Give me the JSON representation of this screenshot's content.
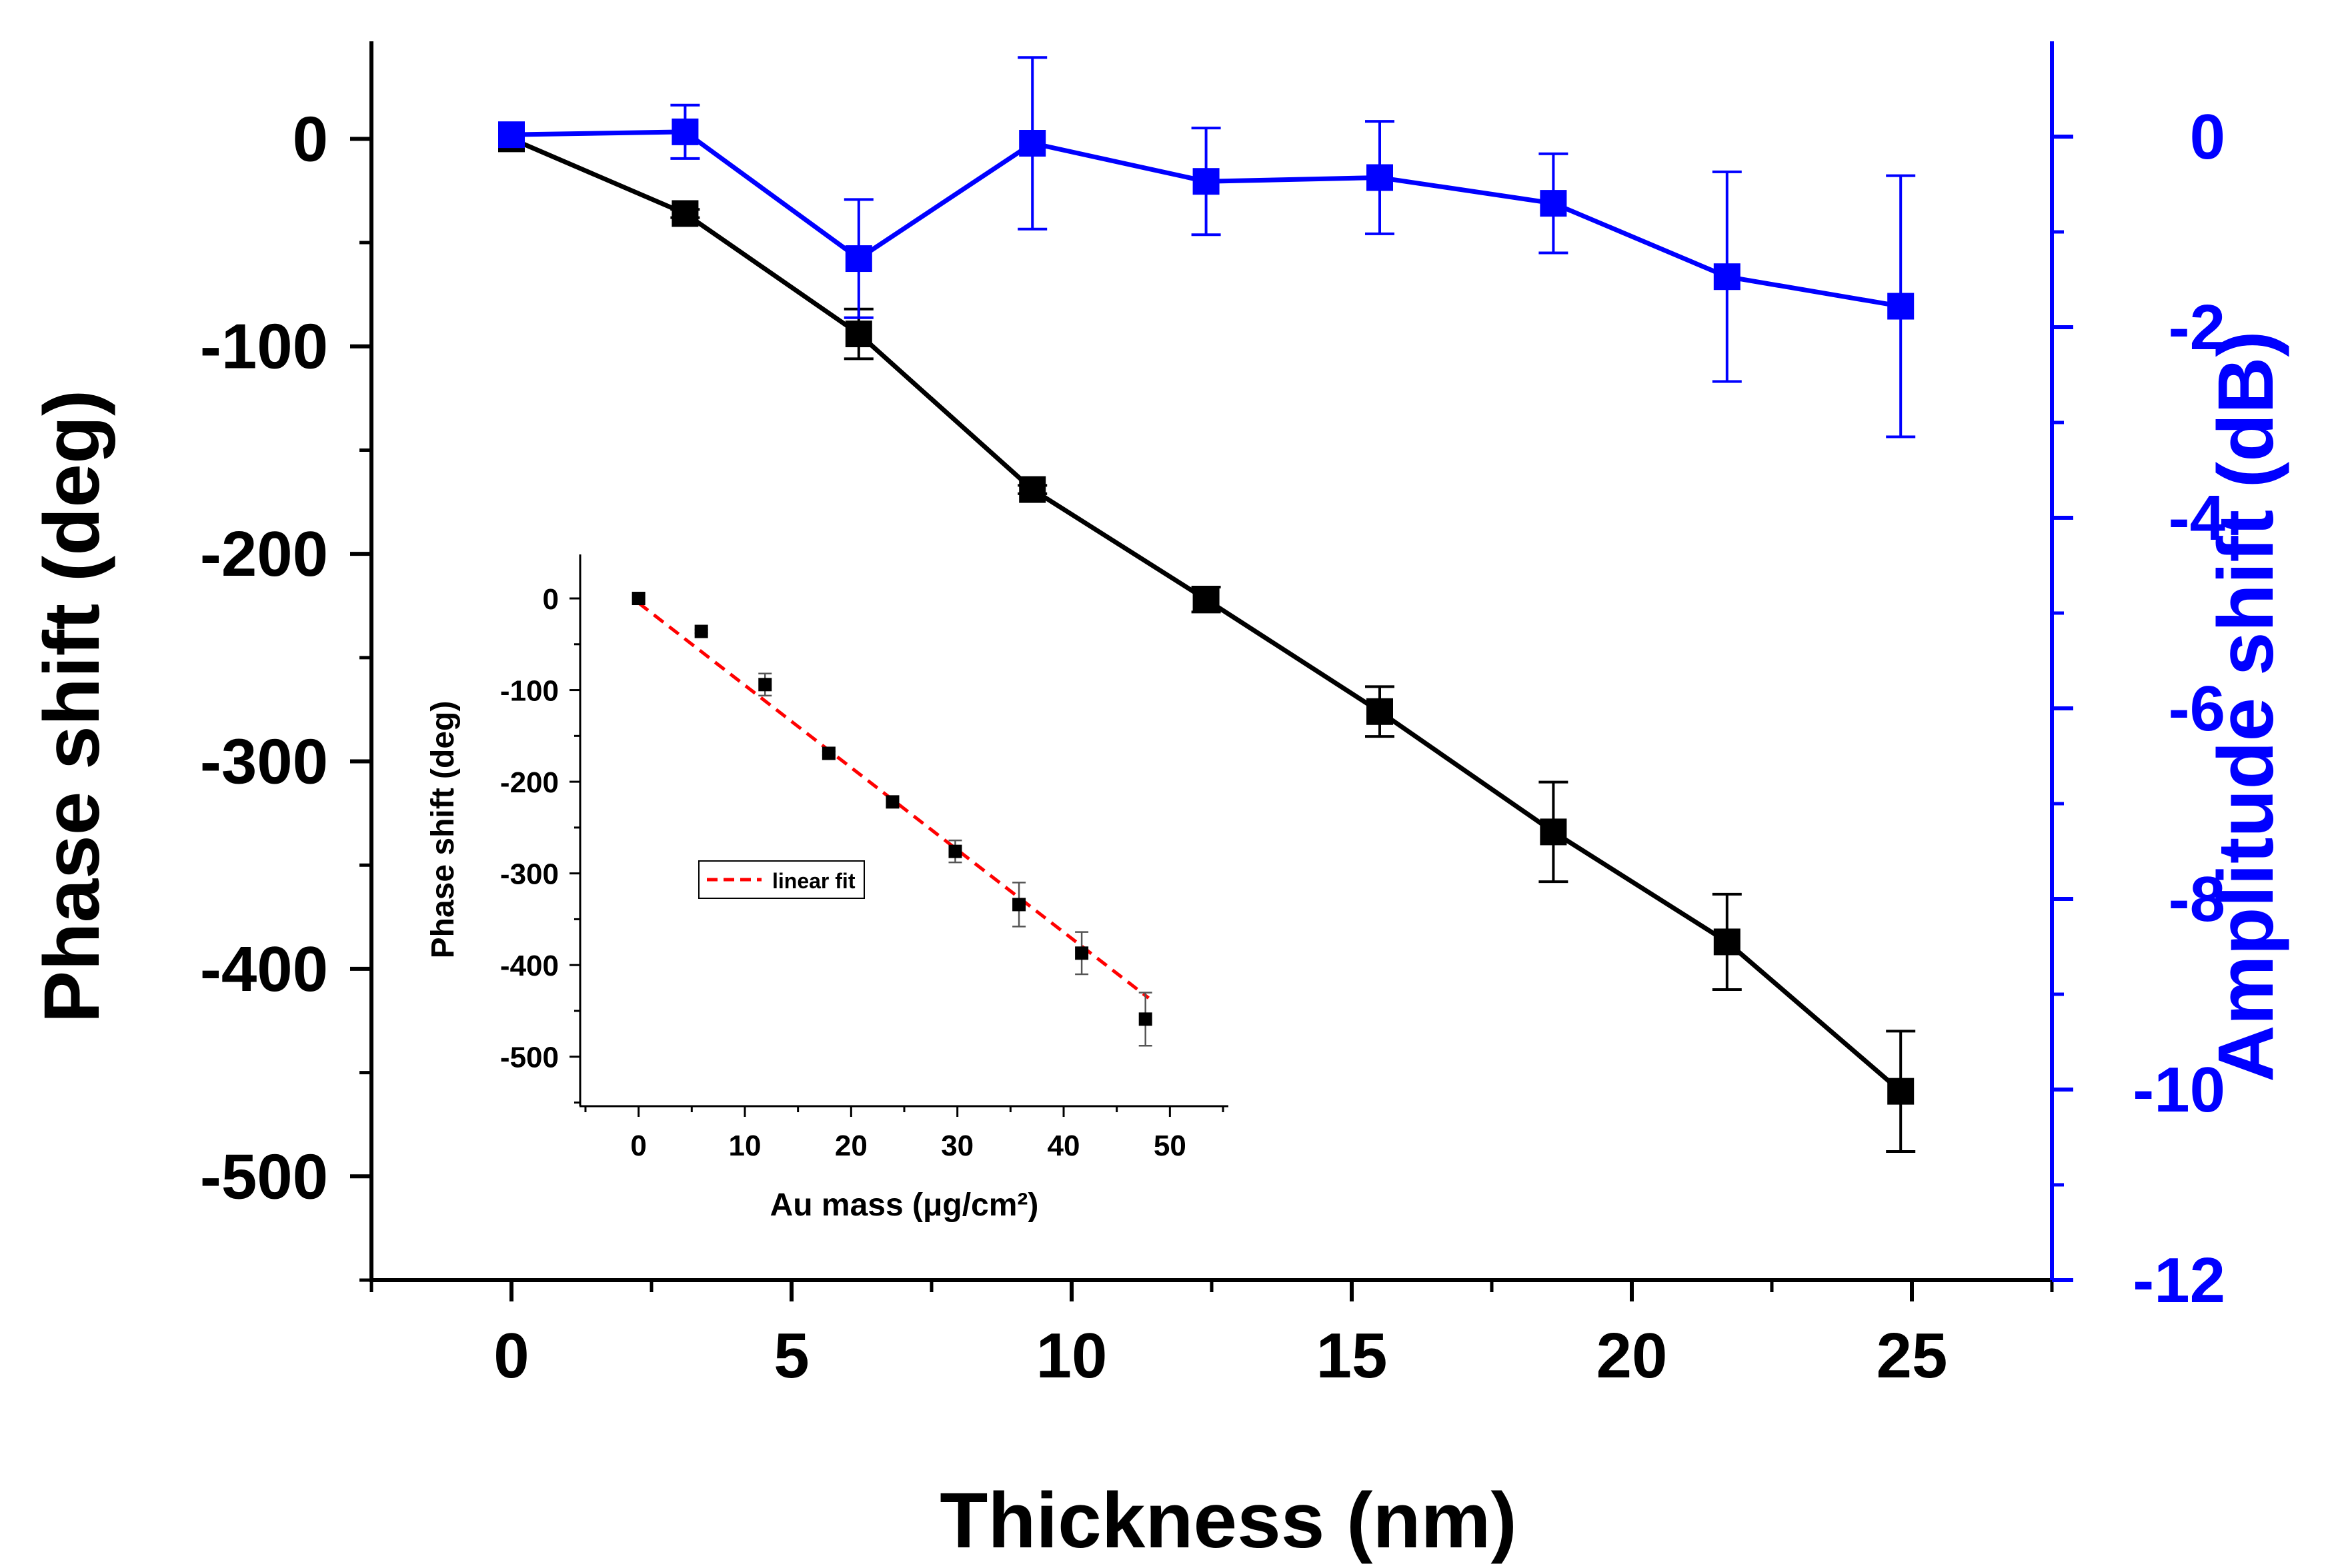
{
  "chart_data": [
    {
      "id": "main",
      "type": "line",
      "xlabel": "Thickness (nm)",
      "ylabel": "Phase shift (deg)",
      "y2label": "Amplitude shift (dB)",
      "xlim": [
        -2.5,
        27.5
      ],
      "ylim": [
        -550,
        47
      ],
      "y2lim": [
        -12,
        1
      ],
      "xticks": [
        0,
        5,
        10,
        15,
        20,
        25
      ],
      "xtick_labels": [
        "0",
        "5",
        "10",
        "15",
        "20",
        "25"
      ],
      "yticks": [
        0,
        -100,
        -200,
        -300,
        -400,
        -500
      ],
      "ytick_labels": [
        "0",
        "-100",
        "-200",
        "-300",
        "-400",
        "-500"
      ],
      "y2ticks": [
        0,
        -2,
        -4,
        -6,
        -8,
        -10,
        -12
      ],
      "y2tick_labels": [
        "0",
        "-2",
        "-4",
        "-6",
        "-8",
        "-10",
        "-12"
      ],
      "series": [
        {
          "name": "Phase shift",
          "axis": "left",
          "color": "#000000",
          "x": [
            0,
            3.1,
            6.2,
            9.3,
            12.4,
            15.5,
            18.6,
            21.7,
            24.8
          ],
          "y": [
            0,
            -36,
            -94,
            -169,
            -222,
            -276,
            -334,
            -387,
            -459
          ],
          "yerr": [
            0,
            2,
            12,
            2,
            6,
            12,
            24,
            23,
            29
          ]
        },
        {
          "name": "Amplitude shift",
          "axis": "right",
          "color": "#0000ff",
          "x": [
            0,
            3.1,
            6.2,
            9.3,
            12.4,
            15.5,
            18.6,
            21.7,
            24.8
          ],
          "y": [
            0.02,
            0.05,
            -1.28,
            -0.07,
            -0.47,
            -0.43,
            -0.7,
            -1.47,
            -1.78
          ],
          "yerr": [
            0,
            0.28,
            0.62,
            0.9,
            0.56,
            0.59,
            0.52,
            1.1,
            1.37
          ]
        }
      ]
    },
    {
      "id": "inset",
      "type": "scatter",
      "xlabel": "Au mass (μg/cm²)",
      "ylabel": "Phase shift (deg)",
      "xlim": [
        -5.5,
        55.5
      ],
      "ylim": [
        -554,
        48
      ],
      "xticks": [
        0,
        10,
        20,
        30,
        40,
        50
      ],
      "xtick_labels": [
        "0",
        "10",
        "20",
        "30",
        "40",
        "50"
      ],
      "yticks": [
        0,
        -100,
        -200,
        -300,
        -400,
        -500
      ],
      "ytick_labels": [
        "0",
        "-100",
        "-200",
        "-300",
        "-400",
        "-500"
      ],
      "legend": {
        "label": "linear fit",
        "color": "#ff0000",
        "placement": "center-left"
      },
      "fit": {
        "x": [
          0,
          48
        ],
        "y": [
          -5,
          -436
        ]
      },
      "series": [
        {
          "name": "Phase shift",
          "color": "#000000",
          "x": [
            0,
            5.9,
            11.9,
            17.9,
            23.9,
            29.8,
            35.8,
            41.7,
            47.7
          ],
          "y": [
            0,
            -36,
            -94,
            -169,
            -222,
            -276,
            -334,
            -387,
            -459
          ],
          "yerr": [
            0,
            2,
            12,
            2,
            6,
            12,
            24,
            23,
            29
          ]
        }
      ]
    }
  ]
}
